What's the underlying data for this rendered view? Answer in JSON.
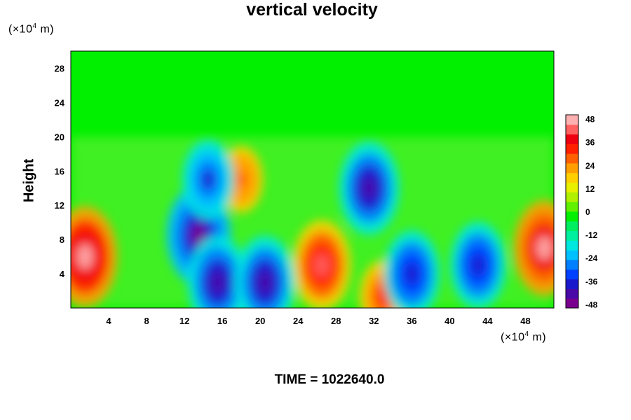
{
  "chart_data": {
    "type": "heatmap",
    "title": "vertical velocity",
    "ylabel": "Height",
    "y_unit": "(×10",
    "x_unit": "(×10",
    "unit_exp": "4",
    "unit_tail": " m)",
    "x_ticks": [
      "4",
      "8",
      "12",
      "16",
      "20",
      "24",
      "28",
      "32",
      "36",
      "40",
      "44",
      "48"
    ],
    "x_tick_values": [
      4,
      8,
      12,
      16,
      20,
      24,
      28,
      32,
      36,
      40,
      44,
      48
    ],
    "y_ticks": [
      "4",
      "8",
      "12",
      "16",
      "20",
      "24",
      "28"
    ],
    "y_tick_values": [
      4,
      8,
      12,
      16,
      20,
      24,
      28
    ],
    "xlim": [
      0,
      51
    ],
    "ylim": [
      0,
      30
    ],
    "colorbar": {
      "ticks": [
        "48",
        "36",
        "24",
        "12",
        "0",
        "-12",
        "-24",
        "-36",
        "-48"
      ],
      "tick_values": [
        48,
        36,
        24,
        12,
        0,
        -12,
        -24,
        -36,
        -48
      ],
      "range": [
        -50,
        50
      ],
      "colors": [
        "#7a0090",
        "#4a0aa8",
        "#1a1acc",
        "#0040ff",
        "#0080ff",
        "#00c0ff",
        "#00e8e0",
        "#00f0a0",
        "#00ee60",
        "#00f000",
        "#60f000",
        "#b0f000",
        "#e8f000",
        "#ffd000",
        "#ffa000",
        "#ff6000",
        "#ff2000",
        "#ee0010",
        "#ff6060",
        "#ffb0b0"
      ]
    },
    "features": [
      {
        "x": 1.5,
        "y": 6.0,
        "value": 48
      },
      {
        "x": 26.5,
        "y": 5.0,
        "value": 42
      },
      {
        "x": 50.0,
        "y": 7.0,
        "value": 45
      },
      {
        "x": 33.0,
        "y": 1.3,
        "value": 32
      },
      {
        "x": 18.0,
        "y": 15.0,
        "value": 28
      },
      {
        "x": 13.5,
        "y": 8.5,
        "value": -48
      },
      {
        "x": 15.5,
        "y": 3.0,
        "value": -44
      },
      {
        "x": 20.5,
        "y": 3.0,
        "value": -44
      },
      {
        "x": 31.5,
        "y": 14.0,
        "value": -44
      },
      {
        "x": 36.0,
        "y": 4.0,
        "value": -40
      },
      {
        "x": 43.0,
        "y": 5.0,
        "value": -40
      },
      {
        "x": 14.5,
        "y": 15.0,
        "value": -36
      }
    ],
    "grid": false,
    "legend": "colorbar-right"
  },
  "footer": {
    "time_label": "TIME = 1022640.0"
  }
}
